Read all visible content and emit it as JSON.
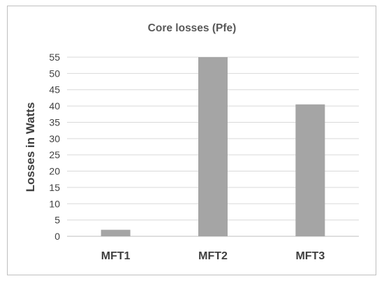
{
  "chart_data": {
    "type": "bar",
    "title": "Core losses (Pfe)",
    "xlabel": "",
    "ylabel": "Losses in Watts",
    "categories": [
      "MFT1",
      "MFT2",
      "MFT3"
    ],
    "values": [
      2,
      55,
      40.5
    ],
    "ylim": [
      0,
      55
    ],
    "yticks": [
      0,
      5,
      10,
      15,
      20,
      25,
      30,
      35,
      40,
      45,
      50,
      55
    ],
    "grid": true,
    "legend": "none",
    "colors": {
      "bar": "#a5a5a5",
      "grid": "#d9d9d9",
      "axis": "#bfbfbf"
    }
  }
}
